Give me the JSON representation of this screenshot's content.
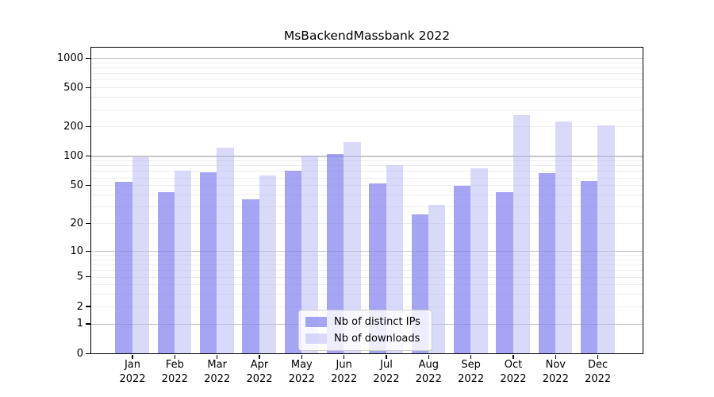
{
  "chart_data": {
    "type": "bar",
    "title": "MsBackendMassbank 2022",
    "scale": "log1p",
    "grid": true,
    "legend_position": "lower center",
    "ylim": [
      0,
      1000
    ],
    "yticks": [
      0,
      1,
      2,
      5,
      10,
      20,
      50,
      100,
      200,
      500,
      1000
    ],
    "categories": [
      "Jan",
      "Feb",
      "Mar",
      "Apr",
      "May",
      "Jun",
      "Jul",
      "Aug",
      "Sep",
      "Oct",
      "Nov",
      "Dec"
    ],
    "xtick_year": "2022",
    "series": [
      {
        "name": "Nb of distinct IPs",
        "color": "#8282f0b8",
        "values": [
          54,
          42,
          68,
          36,
          71,
          105,
          52,
          25,
          49,
          42,
          67,
          55
        ]
      },
      {
        "name": "Nb of downloads",
        "color": "#b4b4f580",
        "values": [
          98,
          70,
          122,
          63,
          101,
          138,
          81,
          31,
          75,
          260,
          225,
          204
        ]
      }
    ]
  },
  "colors": {
    "axis": "#000000",
    "grid_major": "#c6c6c6",
    "grid_minor": "#ededed",
    "background": "#ffffff"
  }
}
